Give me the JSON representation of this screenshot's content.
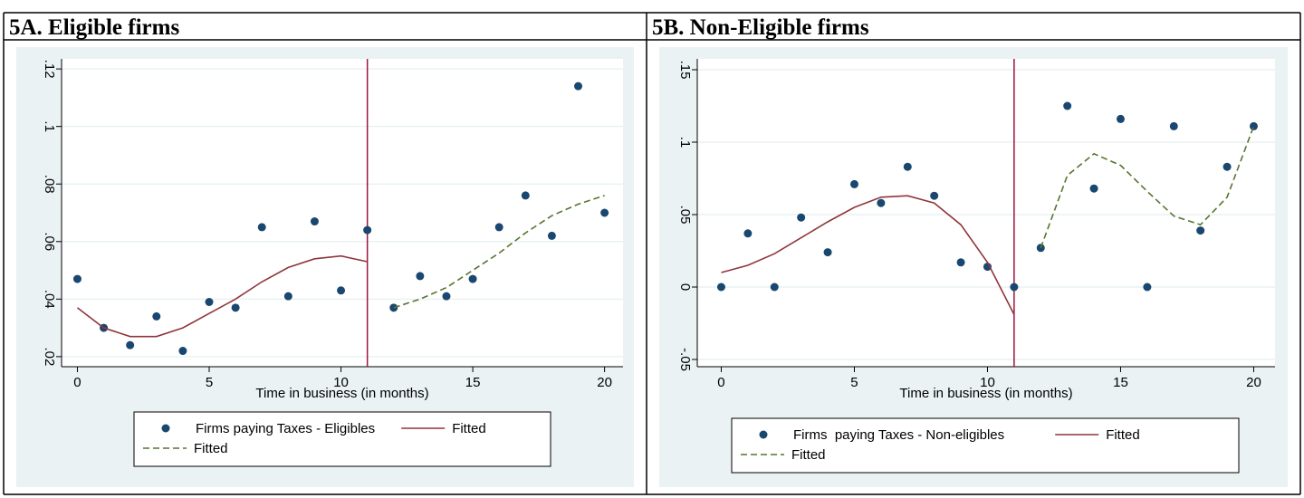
{
  "chart_data": [
    {
      "type": "scatter",
      "title": "5A. Eligible firms",
      "x": [
        0,
        1,
        2,
        3,
        4,
        5,
        6,
        7,
        8,
        9,
        10,
        11,
        12,
        13,
        14,
        15,
        16,
        17,
        18,
        19,
        20
      ],
      "xlim": [
        -0.6,
        20.7
      ],
      "xticks": [
        0,
        5,
        10,
        15,
        20
      ],
      "ylim": [
        0.0165,
        0.1235
      ],
      "yticks": [
        {
          "value": 0.02,
          "label": ".02"
        },
        {
          "value": 0.04,
          "label": ".04"
        },
        {
          "value": 0.06,
          "label": ".06"
        },
        {
          "value": 0.08,
          "label": ".08"
        },
        {
          "value": 0.1,
          "label": ".1"
        },
        {
          "value": 0.12,
          "label": ".12"
        }
      ],
      "xlabel": "Time in business (in months)",
      "xline": 11,
      "xline_color": "#a0143c",
      "grid": true,
      "series": [
        {
          "name": "Firms paying Taxes - Eligibles",
          "color": "#1a476f",
          "style": "markers",
          "values": [
            0.047,
            0.03,
            0.024,
            0.034,
            0.022,
            0.039,
            0.037,
            0.065,
            0.041,
            0.067,
            0.043,
            0.064,
            0.037,
            0.048,
            0.041,
            0.047,
            0.065,
            0.076,
            0.062,
            0.114,
            0.07
          ]
        },
        {
          "name": "Fitted",
          "color": "#90353b",
          "style": "solid",
          "values": [
            0.037,
            0.03,
            0.027,
            0.027,
            0.03,
            0.035,
            0.04,
            0.046,
            0.051,
            0.054,
            0.055,
            0.053,
            null,
            null,
            null,
            null,
            null,
            null,
            null,
            null,
            null
          ]
        },
        {
          "name": "Fitted",
          "color": "#55752f",
          "style": "dashed",
          "values": [
            null,
            null,
            null,
            null,
            null,
            null,
            null,
            null,
            null,
            null,
            null,
            null,
            0.037,
            0.04,
            0.044,
            0.05,
            0.056,
            0.063,
            0.069,
            0.073,
            0.076
          ]
        }
      ]
    },
    {
      "type": "scatter",
      "title": "5B. Non-Eligible firms",
      "x": [
        0,
        1,
        2,
        3,
        4,
        5,
        6,
        7,
        8,
        9,
        10,
        11,
        12,
        13,
        14,
        15,
        16,
        17,
        18,
        19,
        20
      ],
      "xlim": [
        -0.9,
        20.8
      ],
      "xticks": [
        0,
        5,
        10,
        15,
        20
      ],
      "ylim": [
        -0.055,
        0.1575
      ],
      "yticks": [
        {
          "value": -0.05,
          "label": "-.05"
        },
        0,
        {
          "value": 0.05,
          "label": ".05"
        },
        {
          "value": 0.1,
          "label": ".1"
        },
        {
          "value": 0.15,
          "label": ".15"
        }
      ],
      "xlabel": "Time in business (in months)",
      "xline": 11,
      "xline_color": "#a0143c",
      "grid": true,
      "series": [
        {
          "name": "Firms  paying Taxes - Non-eligibles",
          "color": "#1a476f",
          "style": "markers",
          "values": [
            0,
            0.037,
            0,
            0.048,
            0.024,
            0.071,
            0.058,
            0.083,
            0.063,
            0.017,
            0.014,
            0,
            0.027,
            0.125,
            0.068,
            0.116,
            0,
            0.111,
            0.039,
            0.083,
            0.111
          ]
        },
        {
          "name": "Fitted",
          "color": "#90353b",
          "style": "solid",
          "values": [
            0.01,
            0.015,
            0.023,
            0.034,
            0.045,
            0.055,
            0.062,
            0.063,
            0.058,
            0.043,
            0.017,
            -0.019,
            null,
            null,
            null,
            null,
            null,
            null,
            null,
            null,
            null
          ]
        },
        {
          "name": "Fitted",
          "color": "#55752f",
          "style": "dashed",
          "values": [
            null,
            null,
            null,
            null,
            null,
            null,
            null,
            null,
            null,
            null,
            null,
            null,
            0.027,
            0.077,
            0.092,
            0.084,
            0.066,
            0.049,
            0.043,
            0.062,
            0.111
          ]
        }
      ]
    }
  ]
}
